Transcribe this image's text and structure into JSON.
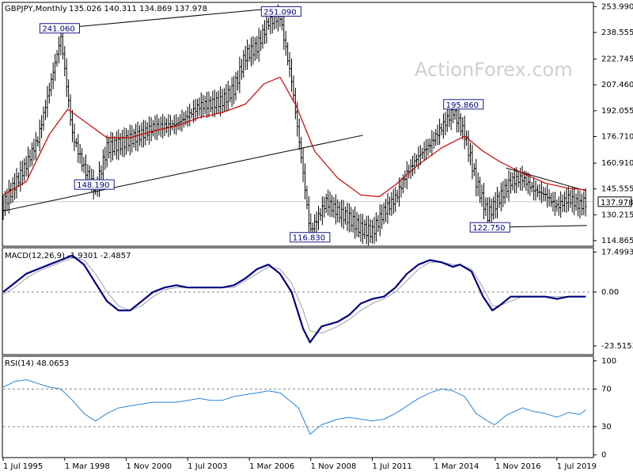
{
  "header": {
    "symbol": "GBPJPY,Monthly",
    "ohlc": "135.026 140.311 134.869 137.978"
  },
  "watermark": "ActionForex.com",
  "colors": {
    "bars": "#000000",
    "ma": "#cc0000",
    "macd": "#000080",
    "signal": "#a0a0a0",
    "rsi": "#2a86d6",
    "frame": "#000000",
    "trend": "#000000",
    "box_border": "#1a1a8c",
    "box_text": "#000080"
  },
  "chart_data": [
    {
      "type": "line",
      "panel": "price",
      "grid": false,
      "y_axis": {
        "ticks": [
          "253.990",
          "238.555",
          "222.745",
          "207.460",
          "192.055",
          "176.710",
          "160.910",
          "145.555",
          "130.215",
          "114.865"
        ],
        "tick_values": [
          253.99,
          238.555,
          222.745,
          207.46,
          192.055,
          176.71,
          160.91,
          145.555,
          130.215,
          114.865
        ],
        "ylim": [
          112.0,
          256.0
        ],
        "current": "137.978",
        "current_value": 137.978
      },
      "x_axis": {
        "labels": [
          "1 Jul 1995",
          "1 Mar 1998",
          "1 Nov 2000",
          "1 Jul 2003",
          "1 Mar 2006",
          "1 Nov 2008",
          "1 Jul 2011",
          "1 Mar 2014",
          "1 Nov 2016",
          "1 Jul 2019"
        ],
        "xlim": [
          1995.5,
          2021.05
        ]
      },
      "annotations": [
        {
          "text": "241.060",
          "x": 1997.95,
          "y": 241.06
        },
        {
          "text": "251.090",
          "x": 2007.55,
          "y": 251.09
        },
        {
          "text": "148.190",
          "x": 1999.45,
          "y": 148.19
        },
        {
          "text": "116.830",
          "x": 2008.8,
          "y": 116.83
        },
        {
          "text": "195.860",
          "x": 2015.45,
          "y": 195.86
        },
        {
          "text": "122.750",
          "x": 2016.6,
          "y": 122.75
        }
      ],
      "trendlines": [
        {
          "x": [
            1997.95,
            2007.55
          ],
          "y": [
            241.06,
            253.3
          ]
        },
        {
          "x": [
            1995.5,
            2011.1
          ],
          "y": [
            132.5,
            177.5
          ]
        },
        {
          "x": [
            2016.6,
            2020.8
          ],
          "y": [
            122.75,
            123.8
          ]
        },
        {
          "x": [
            2017.3,
            2020.75
          ],
          "y": [
            158.0,
            144.5
          ]
        }
      ],
      "series": [
        {
          "name": "",
          "style": "bars",
          "x": [
            1995.5,
            1996.0,
            1996.5,
            1997.0,
            1997.5,
            1998.0,
            1998.5,
            1999.0,
            1999.5,
            2000.0,
            2000.5,
            2001.0,
            2001.5,
            2002.0,
            2002.5,
            2003.0,
            2003.5,
            2004.0,
            2004.5,
            2005.0,
            2005.5,
            2006.0,
            2006.5,
            2007.0,
            2007.5,
            2008.0,
            2008.5,
            2008.8,
            2009.0,
            2009.5,
            2010.0,
            2010.5,
            2011.0,
            2011.5,
            2012.0,
            2012.5,
            2013.0,
            2013.5,
            2014.0,
            2014.5,
            2015.0,
            2015.5,
            2016.0,
            2016.5,
            2017.0,
            2017.5,
            2018.0,
            2018.5,
            2019.0,
            2019.5,
            2020.0,
            2020.5,
            2020.75
          ],
          "y": [
            136,
            148,
            160,
            175,
            205,
            236,
            178,
            158,
            145,
            170,
            172,
            175,
            178,
            182,
            183,
            184,
            189,
            195,
            196,
            198,
            205,
            225,
            230,
            245,
            248,
            210,
            155,
            120,
            125,
            138,
            132,
            128,
            122,
            120,
            132,
            140,
            155,
            165,
            172,
            182,
            192,
            178,
            150,
            130,
            140,
            150,
            152,
            145,
            142,
            135,
            140,
            136,
            138
          ]
        },
        {
          "name": "",
          "style": "ma",
          "x": [
            1995.5,
            1996.5,
            1997.5,
            1998.3,
            1999.0,
            2000.0,
            2001.0,
            2002.0,
            2003.0,
            2004.0,
            2005.0,
            2006.0,
            2006.8,
            2007.5,
            2008.2,
            2009.0,
            2010.0,
            2011.0,
            2011.8,
            2012.5,
            2013.5,
            2014.5,
            2015.5,
            2016.3,
            2017.0,
            2018.0,
            2019.0,
            2020.0,
            2020.75
          ],
          "y": [
            142,
            150,
            178,
            193,
            186,
            176,
            176,
            180,
            183,
            188,
            191,
            196,
            208,
            212,
            195,
            168,
            152,
            142,
            141,
            148,
            160,
            170,
            177,
            168,
            162,
            155,
            149,
            146,
            145
          ]
        }
      ]
    },
    {
      "type": "line",
      "panel": "macd",
      "title": "MACD(12,26,9) -1.9301 -2.4857",
      "grid": false,
      "y_axis": {
        "ticks": [
          "17.4993",
          "0.00",
          "-23.5153"
        ],
        "tick_values": [
          17.4993,
          0.0,
          -23.5153
        ],
        "ylim": [
          -27.0,
          19.0
        ]
      },
      "series": [
        {
          "name": "",
          "style": "macd",
          "x": [
            1995.5,
            1996.0,
            1996.5,
            1997.0,
            1997.5,
            1998.0,
            1998.5,
            1999.0,
            1999.5,
            2000.0,
            2000.5,
            2001.0,
            2001.5,
            2002.0,
            2002.5,
            2003.0,
            2003.5,
            2004.0,
            2004.5,
            2005.0,
            2005.5,
            2006.0,
            2006.5,
            2007.0,
            2007.5,
            2008.0,
            2008.5,
            2008.8,
            2009.3,
            2010.0,
            2010.5,
            2011.0,
            2011.5,
            2012.0,
            2012.5,
            2013.0,
            2013.5,
            2014.0,
            2014.5,
            2015.0,
            2015.3,
            2015.8,
            2016.3,
            2016.7,
            2017.0,
            2017.5,
            2018.0,
            2018.5,
            2019.0,
            2019.5,
            2020.0,
            2020.5,
            2020.75
          ],
          "y": [
            0,
            4,
            8,
            10,
            12,
            14,
            16,
            12,
            4,
            -4,
            -8,
            -8,
            -4,
            0,
            2,
            3,
            2,
            2,
            2,
            2,
            3,
            6,
            10,
            12,
            8,
            0,
            -16,
            -22,
            -15,
            -13,
            -10,
            -5,
            -3,
            -2,
            2,
            8,
            12,
            14,
            13,
            11,
            12,
            9,
            -2,
            -8,
            -6,
            -2,
            -2,
            -2,
            -2,
            -3,
            -2,
            -2,
            -2
          ]
        },
        {
          "name": "",
          "style": "signal",
          "x": [
            1995.5,
            1996.0,
            1996.5,
            1997.0,
            1997.5,
            1998.0,
            1998.5,
            1999.0,
            1999.5,
            2000.0,
            2000.5,
            2001.0,
            2001.5,
            2002.0,
            2002.5,
            2003.0,
            2003.5,
            2004.0,
            2004.5,
            2005.0,
            2005.5,
            2006.0,
            2006.5,
            2007.0,
            2007.5,
            2008.0,
            2008.5,
            2008.8,
            2009.3,
            2010.0,
            2010.5,
            2011.0,
            2011.5,
            2012.0,
            2012.5,
            2013.0,
            2013.5,
            2014.0,
            2014.5,
            2015.0,
            2015.3,
            2015.8,
            2016.3,
            2016.7,
            2017.0,
            2017.5,
            2018.0,
            2018.5,
            2019.0,
            2019.5,
            2020.0,
            2020.5,
            2020.75
          ],
          "y": [
            -1,
            2,
            6,
            9,
            11,
            13,
            15,
            14,
            8,
            0,
            -6,
            -8,
            -6,
            -2,
            1,
            2,
            2,
            2,
            2,
            2,
            2,
            5,
            8,
            11,
            10,
            4,
            -8,
            -17,
            -18,
            -15,
            -12,
            -8,
            -5,
            -3,
            0,
            5,
            10,
            13,
            13,
            12,
            12,
            10,
            2,
            -6,
            -6,
            -4,
            -2,
            -2,
            -2,
            -2,
            -2,
            -2,
            -2
          ]
        }
      ]
    },
    {
      "type": "line",
      "panel": "rsi",
      "title": "RSI(14) 48.0653",
      "grid": false,
      "y_axis": {
        "ticks": [
          "100",
          "70",
          "30",
          "0"
        ],
        "tick_values": [
          100,
          70,
          30,
          0
        ],
        "ylim": [
          -2.0,
          104.0
        ],
        "levels": [
          70,
          30
        ]
      },
      "series": [
        {
          "name": "",
          "style": "rsi",
          "x": [
            1995.5,
            1996.0,
            1996.5,
            1997.0,
            1997.5,
            1998.0,
            1998.5,
            1999.0,
            1999.5,
            2000.0,
            2000.5,
            2001.0,
            2001.5,
            2002.0,
            2002.5,
            2003.0,
            2003.5,
            2004.0,
            2004.5,
            2005.0,
            2005.5,
            2006.0,
            2006.5,
            2007.0,
            2007.5,
            2008.0,
            2008.3,
            2008.8,
            2009.3,
            2010.0,
            2010.5,
            2011.0,
            2011.5,
            2012.0,
            2012.5,
            2013.0,
            2013.5,
            2014.0,
            2014.5,
            2015.0,
            2015.5,
            2016.0,
            2016.5,
            2016.8,
            2017.3,
            2018.0,
            2018.5,
            2019.0,
            2019.5,
            2020.0,
            2020.5,
            2020.75
          ],
          "y": [
            72,
            78,
            80,
            76,
            72,
            70,
            58,
            44,
            36,
            44,
            50,
            52,
            54,
            56,
            56,
            56,
            58,
            60,
            58,
            58,
            62,
            64,
            66,
            68,
            66,
            56,
            50,
            22,
            32,
            38,
            40,
            38,
            36,
            38,
            44,
            52,
            60,
            66,
            70,
            68,
            62,
            44,
            36,
            32,
            42,
            50,
            46,
            44,
            40,
            45,
            43,
            48
          ]
        }
      ]
    }
  ]
}
